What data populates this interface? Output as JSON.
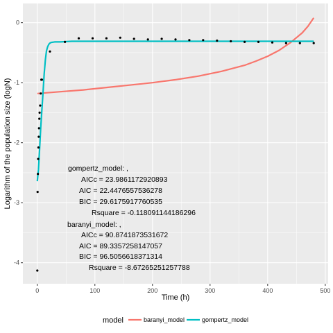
{
  "chart_data": {
    "type": "scatter",
    "xlabel": "Time (h)",
    "ylabel": "Logarithm of the population size (logN)",
    "xlim": [
      -25,
      505
    ],
    "ylim": [
      -4.35,
      0.32
    ],
    "x_ticks": [
      0,
      100,
      200,
      300,
      400,
      500
    ],
    "y_ticks": [
      0,
      -1,
      -2,
      -3,
      -4
    ],
    "grid": true,
    "legend_position": "bottom",
    "legend_title": "model",
    "points": {
      "x": [
        0,
        0.5,
        1,
        1.5,
        2,
        2.5,
        3,
        3.5,
        4,
        5,
        6,
        7,
        8,
        22,
        48,
        72,
        96,
        120,
        144,
        168,
        192,
        216,
        240,
        264,
        288,
        312,
        336,
        360,
        384,
        408,
        432,
        456,
        480
      ],
      "y": [
        -4.13,
        -2.82,
        -2.52,
        -2.27,
        -2.08,
        -1.9,
        -1.76,
        -1.6,
        -1.5,
        -1.38,
        -1.18,
        -0.95,
        -0.95,
        -0.48,
        -0.32,
        -0.26,
        -0.26,
        -0.26,
        -0.25,
        -0.27,
        -0.28,
        -0.27,
        -0.28,
        -0.29,
        -0.29,
        -0.3,
        -0.31,
        -0.32,
        -0.32,
        -0.33,
        -0.34,
        -0.34,
        -0.34
      ]
    },
    "series": [
      {
        "name": "baranyi_model",
        "color": "#F8766D",
        "x": [
          0,
          40,
          80,
          120,
          160,
          200,
          240,
          280,
          320,
          360,
          380,
          400,
          420,
          440,
          460,
          470,
          480
        ],
        "y": [
          -1.18,
          -1.15,
          -1.12,
          -1.08,
          -1.04,
          -1.0,
          -0.95,
          -0.89,
          -0.81,
          -0.71,
          -0.64,
          -0.56,
          -0.46,
          -0.33,
          -0.17,
          -0.06,
          0.08
        ]
      },
      {
        "name": "gompertz_model",
        "color": "#00BFC4",
        "x": [
          0,
          2,
          4,
          6,
          8,
          10,
          12,
          14,
          16,
          18,
          20,
          22,
          24,
          30,
          40,
          60,
          100,
          200,
          300,
          400,
          480
        ],
        "y": [
          -2.64,
          -2.45,
          -2.1,
          -1.75,
          -1.45,
          -1.15,
          -0.85,
          -0.62,
          -0.47,
          -0.4,
          -0.36,
          -0.34,
          -0.33,
          -0.32,
          -0.32,
          -0.31,
          -0.31,
          -0.31,
          -0.31,
          -0.31,
          -0.31
        ]
      }
    ],
    "annotations": [
      "gompertz_model: ,",
      "AICc = 23.9861172920893",
      "AIC = 22.4476557536278",
      "BIC = 29.6175917760535",
      "Rsquare = -0.118091144186296",
      "baranyi_model: ,",
      "AICc = 90.8741873531672",
      "AIC = 89.3357258147057",
      "BIC = 96.5056618371314",
      "Rsquare = -8.67265251257788"
    ],
    "colors": {
      "panel_background": "#EBEBEB",
      "grid_major": "#FFFFFF",
      "point": "#000000"
    }
  }
}
